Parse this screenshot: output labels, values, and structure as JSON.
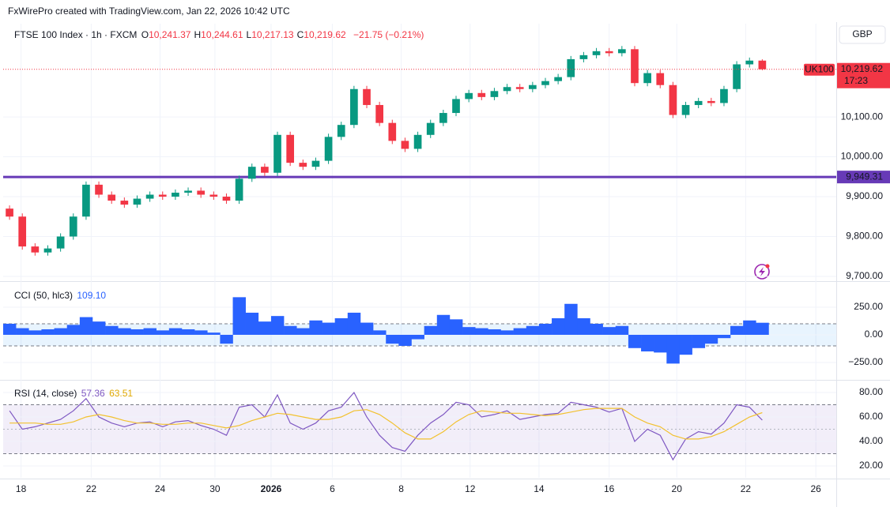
{
  "attribution": "FxWirePro created with TradingView.com, Jan 22, 2026 10:42 UTC",
  "chart_data": [
    {
      "type": "candlestick",
      "title": "FTSE 100 Index · 1h · FXCM",
      "ohlc_legend": [
        {
          "label": "O",
          "value": "10,241.37"
        },
        {
          "label": "H",
          "value": "10,244.61"
        },
        {
          "label": "L",
          "value": "10,217.13"
        },
        {
          "label": "C",
          "value": "10,219.62"
        }
      ],
      "change": "−21.75 (−0.21%)",
      "currency": "GBP",
      "open": [
        9870,
        9850,
        9775,
        9760,
        9770,
        9800,
        9850,
        9930,
        9905,
        9890,
        9880,
        9895,
        9905,
        9900,
        9910,
        9915,
        9905,
        9900,
        9890,
        9945,
        9975,
        9960,
        10055,
        9985,
        9975,
        9990,
        10050,
        10080,
        10170,
        10130,
        10085,
        10040,
        10020,
        10055,
        10085,
        10110,
        10145,
        10160,
        10150,
        10165,
        10175,
        10170,
        10180,
        10190,
        10200,
        10245,
        10255,
        10265,
        10260,
        10270,
        10185,
        10210,
        10180,
        10105,
        10130,
        10140,
        10135,
        10170,
        10232,
        10241.37
      ],
      "high": [
        9878,
        9858,
        9783,
        9778,
        9808,
        9858,
        9938,
        9938,
        9913,
        9898,
        9903,
        9913,
        9913,
        9918,
        9923,
        9923,
        9913,
        9908,
        9953,
        9983,
        9983,
        10063,
        10063,
        9993,
        9998,
        10058,
        10088,
        10178,
        10178,
        10138,
        10093,
        10048,
        10063,
        10093,
        10118,
        10153,
        10168,
        10168,
        10173,
        10183,
        10183,
        10188,
        10198,
        10208,
        10253,
        10263,
        10273,
        10273,
        10278,
        10278,
        10218,
        10218,
        10188,
        10138,
        10148,
        10148,
        10178,
        10240,
        10249,
        10244.61
      ],
      "low": [
        9842,
        9767,
        9752,
        9752,
        9762,
        9792,
        9842,
        9897,
        9882,
        9872,
        9872,
        9887,
        9892,
        9892,
        9902,
        9897,
        9892,
        9882,
        9882,
        9937,
        9952,
        9952,
        9977,
        9967,
        9967,
        9982,
        10042,
        10072,
        10122,
        10077,
        10032,
        10012,
        10012,
        10047,
        10077,
        10102,
        10137,
        10142,
        10142,
        10157,
        10162,
        10162,
        10172,
        10182,
        10192,
        10237,
        10247,
        10252,
        10252,
        10177,
        10177,
        10172,
        10097,
        10097,
        10122,
        10127,
        10127,
        10162,
        10224,
        10217.13
      ],
      "close": [
        9850,
        9775,
        9760,
        9770,
        9800,
        9850,
        9930,
        9905,
        9890,
        9880,
        9895,
        9905,
        9900,
        9910,
        9915,
        9905,
        9900,
        9890,
        9945,
        9975,
        9960,
        10055,
        9985,
        9975,
        9990,
        10050,
        10080,
        10170,
        10130,
        10085,
        10040,
        10020,
        10055,
        10085,
        10110,
        10145,
        10160,
        10150,
        10165,
        10175,
        10170,
        10180,
        10190,
        10200,
        10245,
        10255,
        10265,
        10260,
        10270,
        10185,
        10210,
        10180,
        10105,
        10130,
        10140,
        10135,
        10170,
        10232,
        10241.37,
        10219.62
      ],
      "up_color": "#089981",
      "down_color": "#f23645",
      "ylim": [
        9690,
        10334
      ],
      "yticks": [
        {
          "value": 9700,
          "label": "9,700.00"
        },
        {
          "value": 9800,
          "label": "9,800.00"
        },
        {
          "value": 9900,
          "label": "9,900.00"
        },
        {
          "value": 10000,
          "label": "10,000.00"
        },
        {
          "value": 10100,
          "label": "10,100.00"
        }
      ],
      "xlim": [
        -0.5,
        64.8
      ],
      "xticks": [
        {
          "value": 0.9,
          "label": "18"
        },
        {
          "value": 6.4,
          "label": "22"
        },
        {
          "value": 11.8,
          "label": "24"
        },
        {
          "value": 16.1,
          "label": "30"
        },
        {
          "value": 20.5,
          "label": "2026"
        },
        {
          "value": 25.3,
          "label": "6"
        },
        {
          "value": 30.7,
          "label": "8"
        },
        {
          "value": 36.1,
          "label": "12"
        },
        {
          "value": 41.5,
          "label": "14"
        },
        {
          "value": 47,
          "label": "16"
        },
        {
          "value": 52.3,
          "label": "20"
        },
        {
          "value": 57.7,
          "label": "22"
        },
        {
          "value": 63.2,
          "label": "26"
        }
      ],
      "level_line": {
        "value": 9949.31,
        "label": "9,949.31",
        "color": "#673ab7"
      },
      "last_price": {
        "symbol": "UK100",
        "value": 10219.62,
        "label": "10,219.62",
        "countdown": "17:23"
      }
    },
    {
      "type": "bar",
      "title": "CCI (50, hlc3)",
      "last_label": "109.10",
      "values": [
        100,
        60,
        40,
        50,
        60,
        90,
        160,
        120,
        80,
        60,
        50,
        60,
        40,
        60,
        50,
        40,
        20,
        -80,
        340,
        200,
        120,
        170,
        80,
        60,
        130,
        110,
        150,
        200,
        110,
        40,
        -80,
        -100,
        -40,
        80,
        180,
        140,
        70,
        60,
        50,
        40,
        60,
        80,
        100,
        150,
        280,
        150,
        100,
        70,
        80,
        -120,
        -150,
        -160,
        -260,
        -180,
        -120,
        -80,
        -30,
        80,
        130,
        109.1
      ],
      "color": "#2962ff",
      "ylim": [
        -400,
        471
      ],
      "yticks": [
        {
          "value": -250,
          "label": "−250.00"
        },
        {
          "value": 0,
          "label": "0.00"
        },
        {
          "value": 250,
          "label": "250.00"
        }
      ],
      "bands": [
        -100,
        100
      ]
    },
    {
      "type": "line",
      "title": "RSI (14, close)",
      "series": [
        {
          "last_label": "57.36",
          "color": "#7e57c2",
          "values": [
            65,
            50,
            52,
            55,
            58,
            65,
            75,
            60,
            55,
            52,
            55,
            56,
            52,
            56,
            57,
            53,
            50,
            45,
            68,
            70,
            60,
            78,
            55,
            50,
            55,
            65,
            68,
            80,
            60,
            45,
            35,
            32,
            45,
            55,
            62,
            72,
            70,
            60,
            62,
            65,
            58,
            60,
            62,
            63,
            72,
            70,
            68,
            64,
            67,
            40,
            50,
            45,
            25,
            42,
            48,
            46,
            55,
            70,
            68,
            57.36
          ]
        },
        {
          "last_label": "63.51",
          "color": "#f2c12e",
          "values": [
            55,
            55,
            55,
            54,
            54,
            56,
            60,
            62,
            60,
            57,
            55,
            55,
            54,
            54,
            55,
            55,
            53,
            51,
            53,
            57,
            60,
            63,
            62,
            60,
            58,
            58,
            60,
            65,
            66,
            62,
            55,
            47,
            42,
            42,
            48,
            56,
            62,
            65,
            64,
            63,
            63,
            62,
            61,
            62,
            64,
            66,
            67,
            67,
            67,
            60,
            55,
            52,
            45,
            42,
            42,
            44,
            48,
            54,
            60,
            63.51
          ]
        }
      ],
      "ylim": [
        10.3,
        89
      ],
      "yticks": [
        {
          "value": 20,
          "label": "20.00"
        },
        {
          "value": 40,
          "label": "40.00"
        },
        {
          "value": 60,
          "label": "60.00"
        },
        {
          "value": 80,
          "label": "80.00"
        }
      ],
      "bands": [
        30,
        70
      ],
      "midline": 50
    }
  ]
}
